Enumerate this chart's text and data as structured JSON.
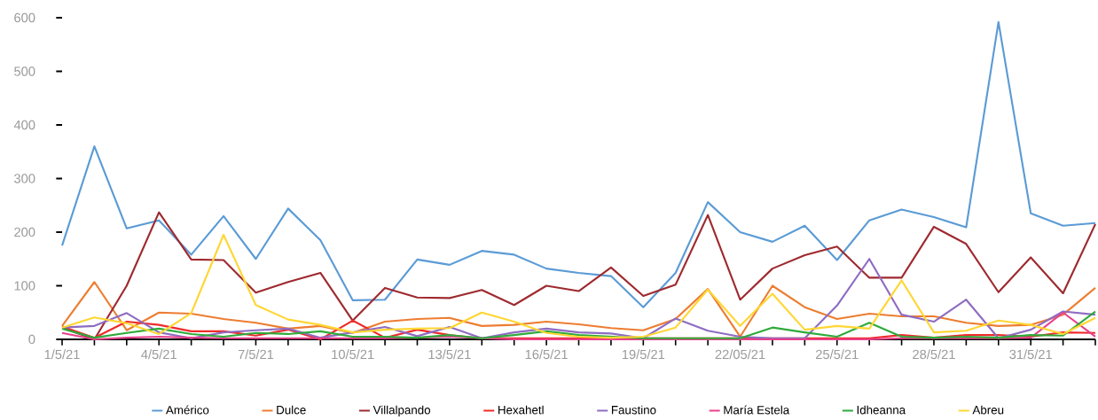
{
  "chart_data": {
    "type": "line",
    "categories": [
      "1/5/21",
      null,
      null,
      "4/5/21",
      null,
      null,
      "7/5/21",
      null,
      null,
      "10/5/21",
      null,
      null,
      "13/5/21",
      null,
      null,
      "16/5/21",
      null,
      null,
      "19/5/21",
      null,
      null,
      "22/05/21",
      null,
      null,
      "25/5/21",
      null,
      null,
      "28/5/21",
      null,
      null,
      "31/5/21",
      null,
      null
    ],
    "series": [
      {
        "name": "Américo",
        "color": "#5b9bd5",
        "values": [
          175,
          360,
          207,
          222,
          158,
          230,
          150,
          244,
          185,
          73,
          74,
          149,
          139,
          165,
          158,
          132,
          124,
          118,
          60,
          124,
          256,
          200,
          182,
          212,
          148,
          222,
          242,
          228,
          209,
          592,
          235,
          212,
          217
        ]
      },
      {
        "name": "Dulce",
        "color": "#ed7d31",
        "values": [
          25,
          107,
          17,
          50,
          48,
          38,
          31,
          20,
          25,
          12,
          33,
          38,
          40,
          25,
          27,
          33,
          28,
          21,
          17,
          38,
          94,
          5,
          100,
          60,
          38,
          48,
          43,
          43,
          31,
          25,
          27,
          46,
          96
        ]
      },
      {
        "name": "Villalpando",
        "color": "#9e2a2f",
        "values": [
          22,
          0,
          100,
          237,
          149,
          148,
          87,
          107,
          124,
          35,
          96,
          78,
          77,
          92,
          64,
          100,
          90,
          134,
          81,
          102,
          232,
          74,
          132,
          157,
          173,
          115,
          115,
          210,
          178,
          88,
          153,
          86,
          215
        ]
      },
      {
        "name": "Hexahetl",
        "color": "#ee2a2a",
        "values": [
          24,
          3,
          33,
          27,
          15,
          15,
          7,
          18,
          0,
          35,
          3,
          18,
          8,
          2,
          2,
          2,
          2,
          3,
          2,
          2,
          2,
          2,
          2,
          2,
          2,
          2,
          8,
          3,
          8,
          8,
          5,
          13,
          12
        ]
      },
      {
        "name": "Faustino",
        "color": "#8e6cc1",
        "values": [
          22,
          25,
          49,
          13,
          2,
          13,
          17,
          20,
          3,
          13,
          23,
          6,
          23,
          2,
          13,
          20,
          13,
          11,
          2,
          39,
          16,
          5,
          2,
          2,
          63,
          150,
          46,
          33,
          74,
          2,
          18,
          52,
          46
        ]
      },
      {
        "name": "María Estela",
        "color": "#e8408c",
        "values": [
          12,
          0,
          3,
          5,
          3,
          2,
          2,
          2,
          2,
          2,
          2,
          3,
          5,
          2,
          0,
          0,
          0,
          0,
          0,
          0,
          0,
          0,
          0,
          0,
          0,
          0,
          2,
          2,
          2,
          2,
          3,
          50,
          5
        ]
      },
      {
        "name": "Idheanna",
        "color": "#2eaa3a",
        "values": [
          20,
          3,
          12,
          20,
          10,
          5,
          12,
          10,
          15,
          5,
          5,
          3,
          8,
          2,
          8,
          15,
          8,
          5,
          2,
          2,
          2,
          2,
          22,
          13,
          5,
          31,
          5,
          3,
          5,
          3,
          8,
          7,
          52
        ]
      },
      {
        "name": "Abreu",
        "color": "#ffd633",
        "values": [
          22,
          41,
          30,
          10,
          49,
          195,
          64,
          37,
          27,
          13,
          18,
          20,
          21,
          50,
          33,
          12,
          5,
          3,
          5,
          22,
          93,
          25,
          85,
          18,
          25,
          20,
          110,
          13,
          16,
          35,
          27,
          10,
          40
        ]
      }
    ],
    "ylim": [
      0,
      600
    ],
    "yticks": [
      0,
      100,
      200,
      300,
      400,
      500,
      600
    ],
    "grid": false,
    "legend": "bottom",
    "marker": "none",
    "line_style": "solid"
  }
}
